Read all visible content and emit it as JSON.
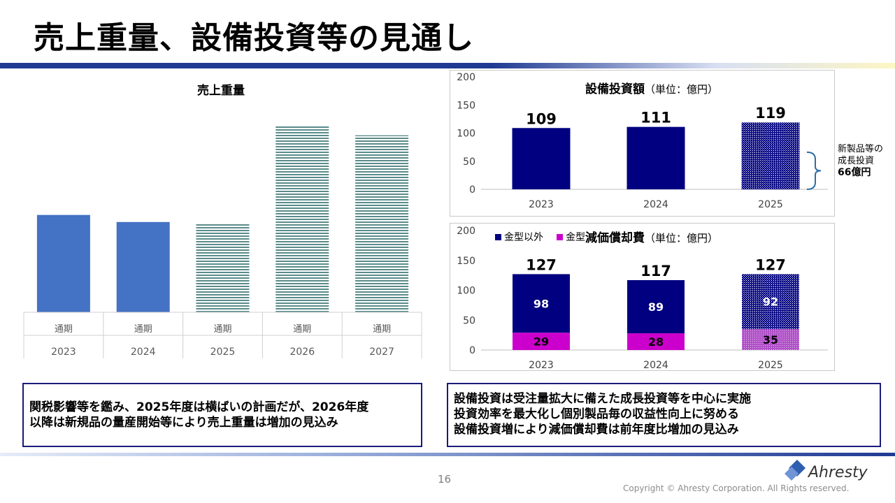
{
  "page": {
    "title": "売上重量、設備投資等の見通し",
    "page_number": "16",
    "copyright": "Copyright © Ahresty Corporation. All Rights reserved.",
    "logo_text": "Ahresty",
    "colors": {
      "navy": "#000080",
      "blue": "#4472c4",
      "magenta": "#cc00cc",
      "teal_hatch": "#5a8a8a",
      "rule": "#1f3a93"
    }
  },
  "chart_data": [
    {
      "type": "bar",
      "title": "売上重量",
      "categories": [
        "2023",
        "2024",
        "2025",
        "2026",
        "2027"
      ],
      "period_labels": [
        "通期",
        "通期",
        "通期",
        "通期",
        "通期"
      ],
      "values": [
        55,
        51,
        50,
        105,
        100
      ],
      "styles": [
        "solid",
        "solid",
        "hatched",
        "hatched",
        "hatched"
      ],
      "ylim": [
        0,
        120
      ]
    },
    {
      "type": "bar",
      "title": "設備投資額",
      "title_unit": "（単位：億円）",
      "categories": [
        "2023",
        "2024",
        "2025"
      ],
      "values": [
        109,
        111,
        119
      ],
      "styles": [
        "solid",
        "solid",
        "hatched"
      ],
      "ylim": [
        0,
        200
      ],
      "yticks": [
        0,
        50,
        100,
        150,
        200
      ],
      "annotation": {
        "lines": [
          "新製品等の",
          "成長投資"
        ],
        "bold_line": "66億円"
      }
    },
    {
      "type": "bar",
      "stacked": true,
      "title": "減価償却費",
      "title_unit": "（単位：億円）",
      "categories": [
        "2023",
        "2024",
        "2025"
      ],
      "series": [
        {
          "name": "金型以外",
          "values": [
            98,
            89,
            92
          ]
        },
        {
          "name": "金型",
          "values": [
            29,
            28,
            35
          ]
        }
      ],
      "totals": [
        127,
        117,
        127
      ],
      "styles": [
        "solid",
        "solid",
        "hatched"
      ],
      "ylim": [
        0,
        200
      ],
      "yticks": [
        0,
        50,
        100,
        150,
        200
      ],
      "legend": "top-left"
    }
  ],
  "notes": {
    "left": [
      "関税影響等を鑑み、2025年度は横ばいの計画だが、2026年度",
      "以降は新規品の量産開始等により売上重量は増加の見込み"
    ],
    "right": [
      "設備投資は受注量拡大に備えた成長投資等を中心に実施",
      "投資効率を最大化し個別製品毎の収益性向上に努める",
      "設備投資増により減価償却費は前年度比増加の見込み"
    ]
  }
}
